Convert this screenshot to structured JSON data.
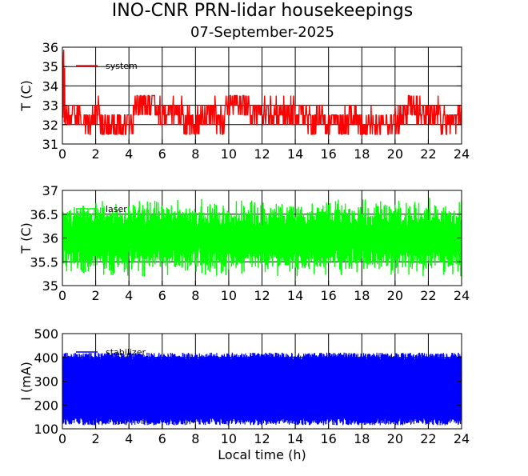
{
  "title": "INO-CNR PRN-lidar housekeepings",
  "subtitle": "07-September-2025",
  "chart_data": [
    {
      "type": "line",
      "ylabel": "T (C)",
      "xlabel": "",
      "xlim": [
        0,
        24
      ],
      "ylim": [
        31,
        36
      ],
      "xticks": [
        "0",
        "2",
        "4",
        "6",
        "8",
        "10",
        "12",
        "14",
        "16",
        "18",
        "20",
        "22",
        "24"
      ],
      "yticks": [
        "31",
        "32",
        "33",
        "34",
        "35",
        "36"
      ],
      "grid": true,
      "legend_position": "top-left",
      "series": [
        {
          "name": "system",
          "color": "#ff0000",
          "x": [
            0,
            0.5,
            1,
            1.5,
            2,
            2.5,
            3,
            3.5,
            4,
            4.5,
            5,
            5.5,
            6,
            6.5,
            7,
            7.5,
            8,
            8.5,
            9,
            9.5,
            10,
            10.5,
            11,
            11.5,
            12,
            12.5,
            13,
            13.5,
            14,
            14.5,
            15,
            15.5,
            16,
            16.5,
            17,
            17.5,
            18,
            18.5,
            19,
            19.5,
            20,
            20.5,
            21,
            21.5,
            22,
            22.5,
            23,
            23.5,
            24
          ],
          "values": [
            32.5,
            32.5,
            32.5,
            32,
            32.5,
            32,
            32,
            32,
            32,
            33,
            33,
            33,
            32.5,
            32.5,
            32.5,
            32,
            32,
            32.5,
            32.5,
            32,
            33,
            33,
            33,
            32.5,
            32.5,
            32.5,
            32.5,
            32.5,
            32.5,
            32.5,
            32,
            32.5,
            32,
            32,
            32,
            32.5,
            32,
            32,
            32,
            32,
            32,
            32.5,
            33,
            32.5,
            32.5,
            32.5,
            32,
            32,
            32.5
          ]
        }
      ]
    },
    {
      "type": "line",
      "ylabel": "T (C)",
      "xlabel": "",
      "xlim": [
        0,
        24
      ],
      "ylim": [
        35,
        37
      ],
      "xticks": [
        "0",
        "2",
        "4",
        "6",
        "8",
        "10",
        "12",
        "14",
        "16",
        "18",
        "20",
        "22",
        "24"
      ],
      "yticks": [
        "35",
        "35.5",
        "36",
        "36.5",
        "37"
      ],
      "grid": true,
      "legend_position": "top-left",
      "series": [
        {
          "name": "laser",
          "color": "#00ff00",
          "x": [
            0,
            1,
            2,
            3,
            4,
            5,
            6,
            7,
            8,
            9,
            10,
            11,
            12,
            13,
            14,
            15,
            16,
            17,
            18,
            19,
            20,
            21,
            22,
            23,
            24
          ],
          "values": [
            36,
            36,
            36,
            36,
            36,
            36,
            36,
            36,
            36,
            36,
            36,
            36,
            36,
            36,
            36,
            36,
            36,
            36,
            36,
            36,
            36,
            36,
            36,
            36,
            36
          ]
        }
      ]
    },
    {
      "type": "line",
      "ylabel": "I (mA)",
      "xlabel": "Local time (h)",
      "xlim": [
        0,
        24
      ],
      "ylim": [
        100,
        500
      ],
      "xticks": [
        "0",
        "2",
        "4",
        "6",
        "8",
        "10",
        "12",
        "14",
        "16",
        "18",
        "20",
        "22",
        "24"
      ],
      "yticks": [
        "100",
        "200",
        "300",
        "400",
        "500"
      ],
      "grid": true,
      "legend_position": "top-left",
      "series": [
        {
          "name": "stabilizer",
          "color": "#0000ff",
          "x": [
            0,
            1,
            2,
            3,
            4,
            5,
            6,
            7,
            8,
            9,
            10,
            11,
            12,
            13,
            14,
            15,
            16,
            17,
            18,
            19,
            20,
            21,
            22,
            23,
            24
          ],
          "values": [
            270,
            270,
            270,
            270,
            270,
            270,
            270,
            270,
            270,
            270,
            270,
            270,
            270,
            270,
            270,
            270,
            270,
            270,
            270,
            270,
            270,
            270,
            270,
            270,
            270
          ]
        }
      ]
    }
  ]
}
